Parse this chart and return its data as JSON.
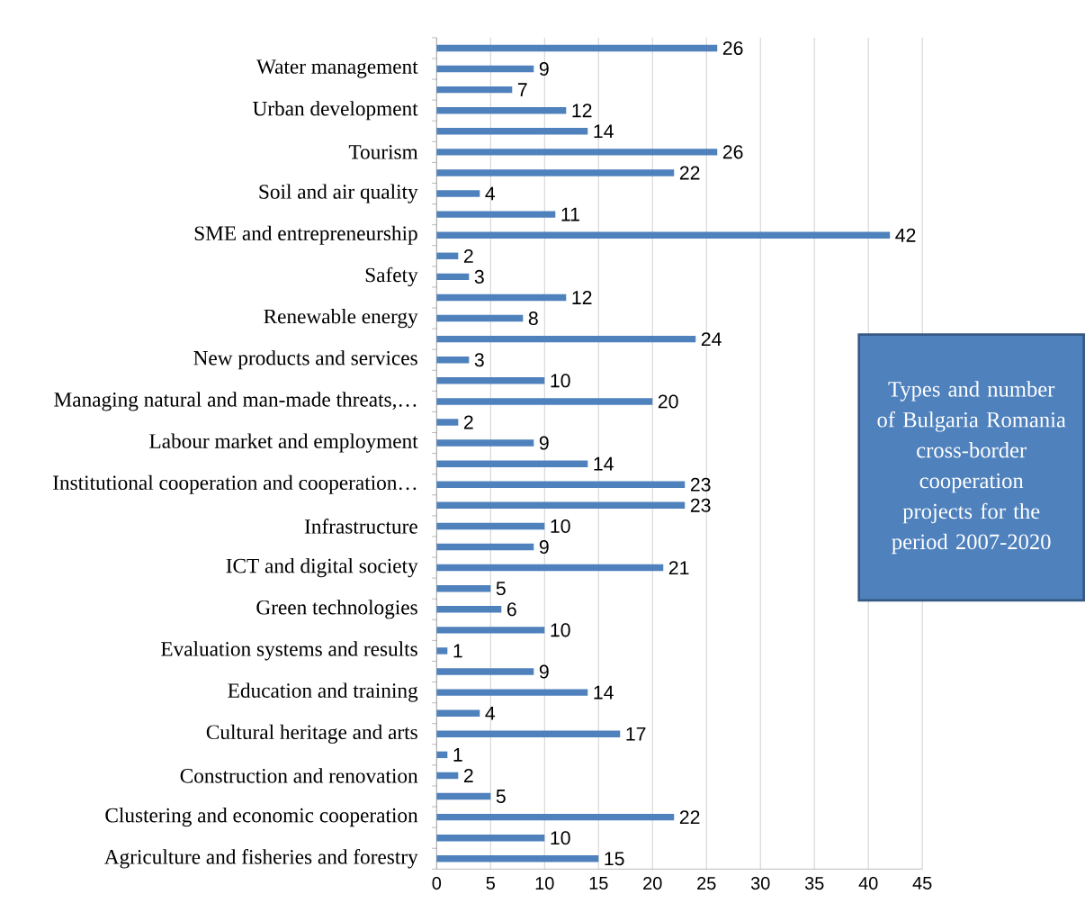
{
  "chart_data": {
    "type": "bar",
    "orientation": "horizontal",
    "title": "Types and number of Bulgaria Romania cross-border cooperation projects for the period 2007-2020",
    "categories": [
      null,
      "Water management",
      null,
      "Urban development",
      null,
      "Tourism",
      null,
      "Soil and air quality",
      null,
      "SME and entrepreneurship",
      null,
      "Safety",
      null,
      "Renewable energy",
      null,
      "New products and services",
      null,
      "Managing natural and man-made threats,…",
      null,
      "Labour market and employment",
      null,
      "Institutional cooperation and cooperation…",
      null,
      "Infrastructure",
      null,
      "ICT and digital society",
      null,
      "Green technologies",
      null,
      "Evaluation systems and results",
      null,
      "Education and training",
      null,
      "Cultural heritage and arts",
      null,
      "Construction and renovation",
      null,
      "Clustering and economic cooperation",
      null,
      "Agriculture and fisheries and forestry"
    ],
    "values": [
      26,
      9,
      7,
      12,
      14,
      26,
      22,
      4,
      11,
      42,
      2,
      3,
      12,
      8,
      24,
      3,
      10,
      20,
      2,
      9,
      14,
      23,
      23,
      10,
      9,
      21,
      5,
      6,
      10,
      1,
      9,
      14,
      4,
      17,
      1,
      2,
      5,
      22,
      10,
      15
    ],
    "color": "#4f81bd",
    "data_labels": true,
    "grid": "x",
    "xlim": [
      0,
      45
    ],
    "xticks": [
      0,
      5,
      10,
      15,
      20,
      25,
      30,
      35,
      40,
      45
    ]
  }
}
